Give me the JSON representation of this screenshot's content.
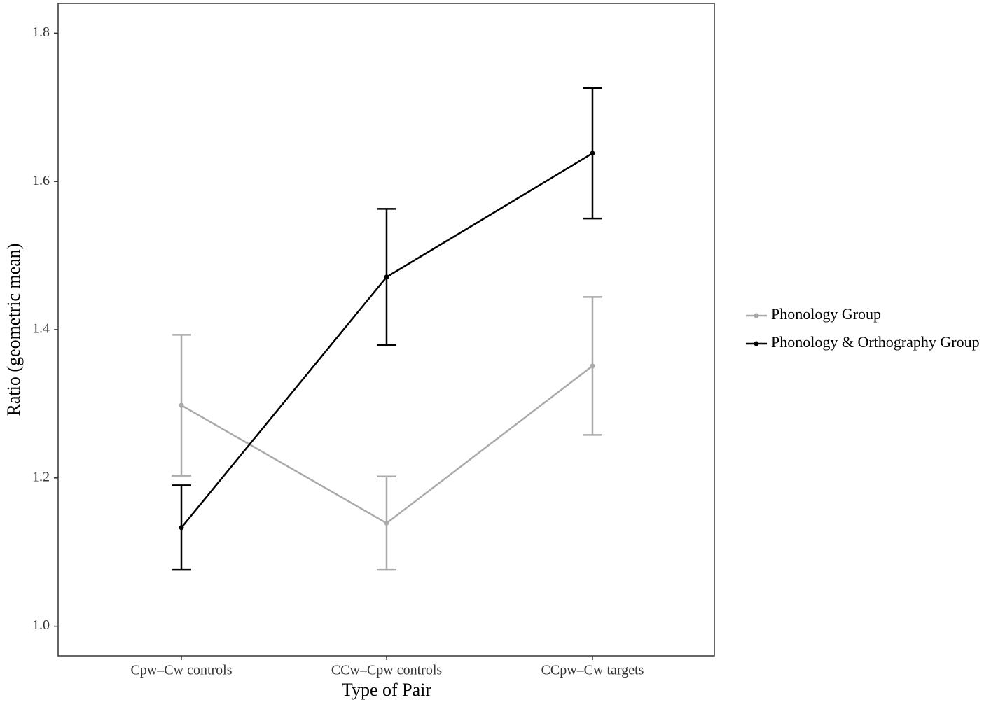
{
  "chart_data": {
    "type": "line",
    "x_label": "Type of Pair",
    "y_label": "Ratio (geometric mean)",
    "categories": [
      "Cpw–Cw controls",
      "CCw–Cpw controls",
      "CCpw–Cw targets"
    ],
    "series": [
      {
        "name": "Phonology Group",
        "color": "#aaaaaa",
        "values": [
          1.298,
          1.139,
          1.351
        ],
        "errors": [
          0.095,
          0.063,
          0.093
        ]
      },
      {
        "name": "Phonology & Orthography Group",
        "color": "#000000",
        "values": [
          1.133,
          1.471,
          1.638
        ],
        "errors": [
          0.057,
          0.092,
          0.088
        ]
      }
    ],
    "ylim": [
      0.96,
      1.84
    ],
    "yticks": [
      {
        "value": 1,
        "label": "1.0"
      },
      1.2,
      1.4,
      1.6,
      1.8
    ],
    "grid": false,
    "legend": "right"
  }
}
